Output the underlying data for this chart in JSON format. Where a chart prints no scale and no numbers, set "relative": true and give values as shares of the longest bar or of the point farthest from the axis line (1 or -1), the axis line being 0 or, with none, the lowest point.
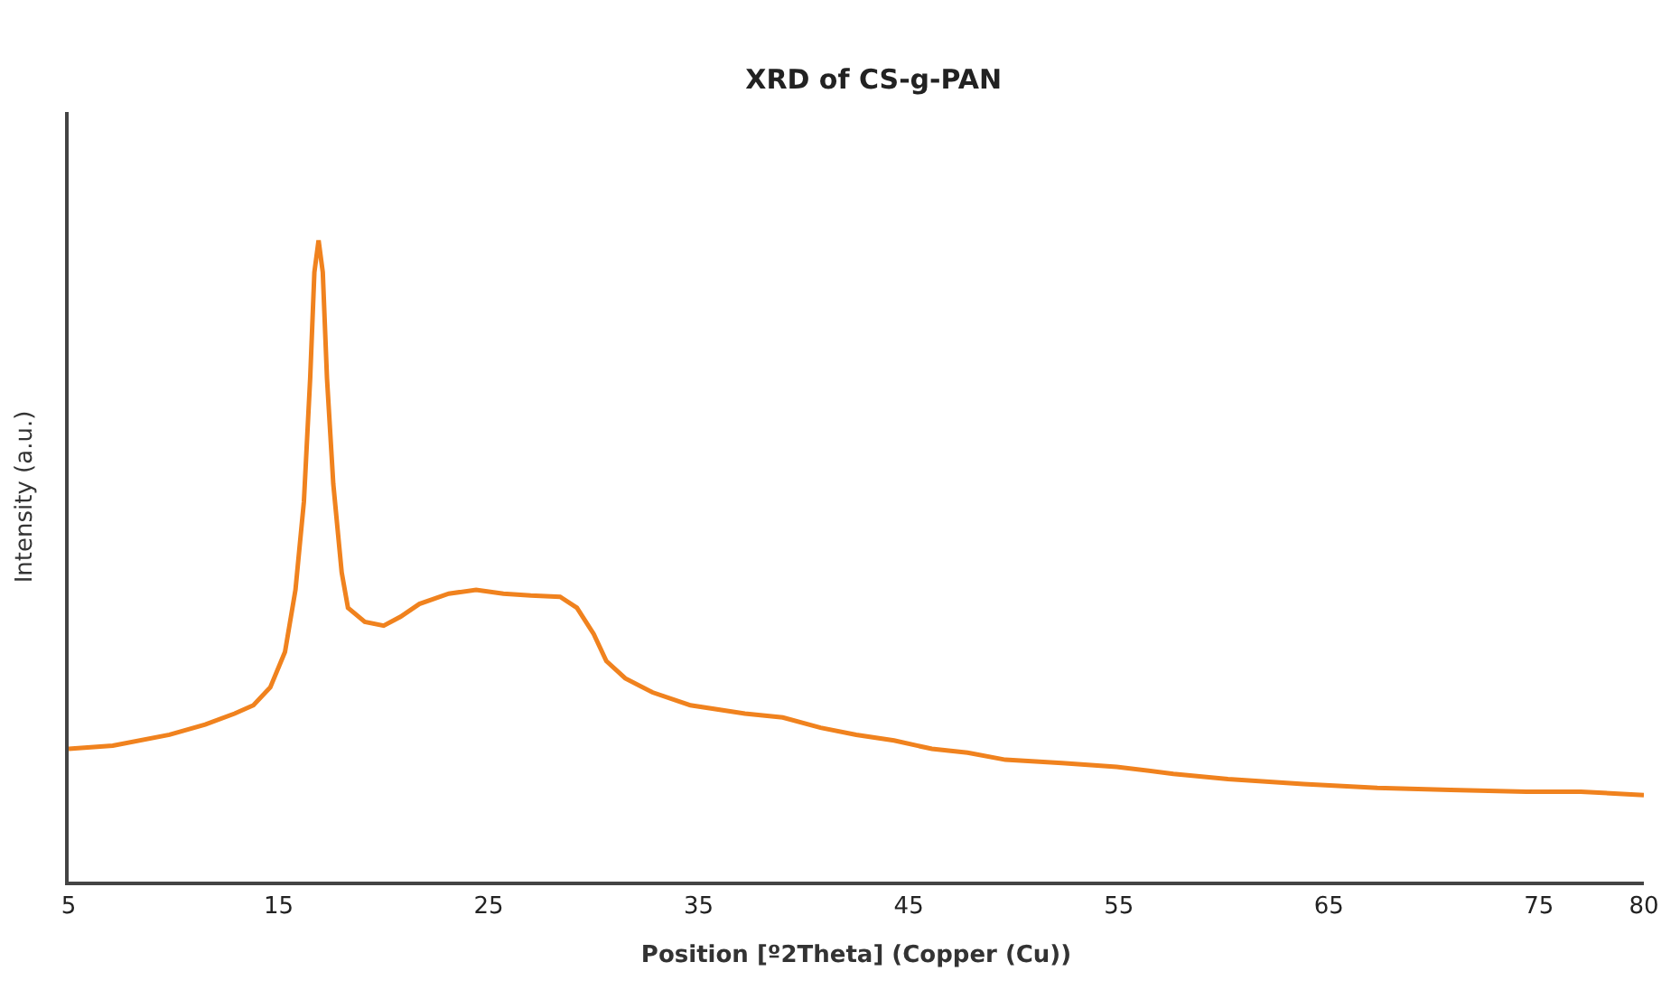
{
  "chart_data": {
    "type": "line",
    "title": "XRD of CS-g-PAN",
    "xlabel": "Position [º2Theta] (Copper (Cu))",
    "ylabel": "Intensity (a.u.)",
    "relative": true,
    "tick_labels": "x",
    "xlim": [
      5,
      80
    ],
    "xticks": [
      5,
      15,
      25,
      35,
      45,
      55,
      65,
      75,
      80
    ],
    "series": [
      {
        "color": "#f0821e",
        "x": [
          5.0,
          7.1,
          9.8,
          11.5,
          12.9,
          13.8,
          14.6,
          15.3,
          15.8,
          16.2,
          16.5,
          16.7,
          16.9,
          17.1,
          17.3,
          17.6,
          18.0,
          18.3,
          19.1,
          20.0,
          20.8,
          21.7,
          23.1,
          24.4,
          25.7,
          27.0,
          28.4,
          29.2,
          30.0,
          30.6,
          31.5,
          32.8,
          34.6,
          37.2,
          39.0,
          40.8,
          42.5,
          44.3,
          46.1,
          47.8,
          49.6,
          52.3,
          54.9,
          57.6,
          60.2,
          63.8,
          67.3,
          70.8,
          74.4,
          77.0,
          80.0
        ],
        "values": [
          0.207,
          0.212,
          0.229,
          0.245,
          0.262,
          0.275,
          0.303,
          0.358,
          0.455,
          0.592,
          0.785,
          0.95,
          1,
          0.95,
          0.785,
          0.62,
          0.482,
          0.427,
          0.405,
          0.399,
          0.413,
          0.433,
          0.449,
          0.455,
          0.449,
          0.446,
          0.444,
          0.427,
          0.386,
          0.344,
          0.317,
          0.295,
          0.275,
          0.262,
          0.256,
          0.24,
          0.229,
          0.22,
          0.207,
          0.201,
          0.19,
          0.185,
          0.179,
          0.168,
          0.16,
          0.152,
          0.146,
          0.143,
          0.14,
          0.14,
          0.135
        ]
      }
    ]
  }
}
